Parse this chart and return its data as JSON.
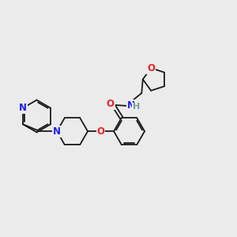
{
  "background_color": "#ebebeb",
  "bond_color": "#1a1a1a",
  "atom_colors": {
    "N": "#2020ee",
    "O": "#ee2020",
    "H": "#7a9a9a",
    "C": "#1a1a1a"
  },
  "font_size_atom": 8.5,
  "figsize": [
    3.0,
    3.0
  ],
  "dpi": 100
}
